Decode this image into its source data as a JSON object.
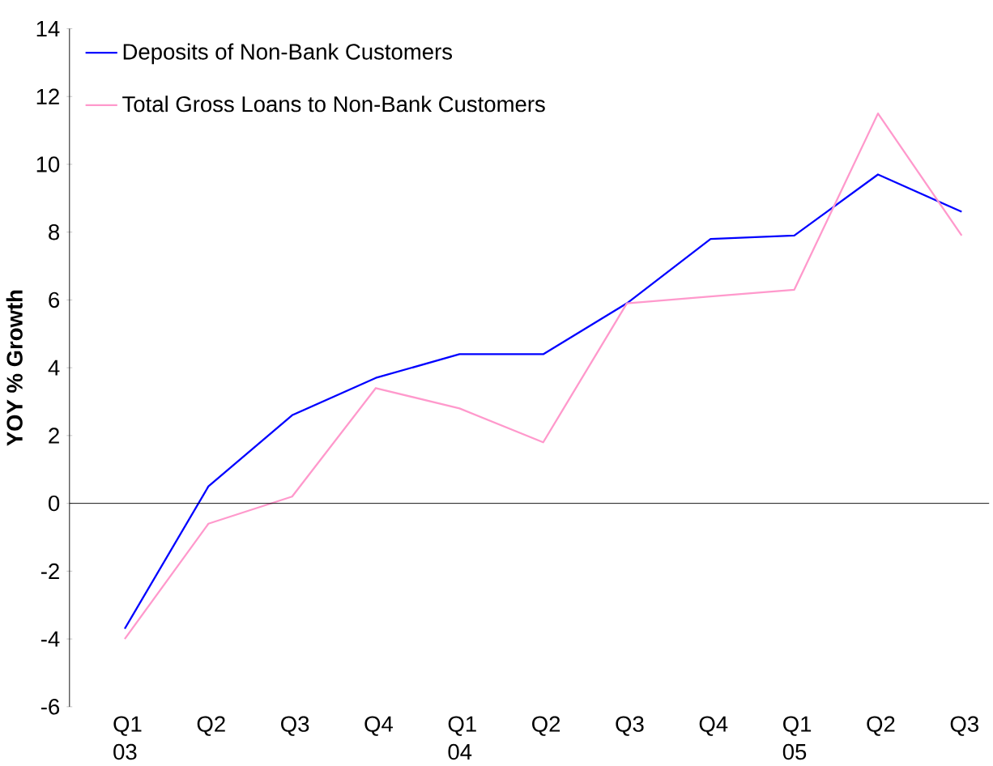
{
  "chart_data": {
    "type": "line",
    "ylabel": "YOY % Growth",
    "categories": [
      "Q1 03",
      "Q2",
      "Q3",
      "Q4",
      "Q1 04",
      "Q2",
      "Q3",
      "Q4",
      "Q1 05",
      "Q2",
      "Q3"
    ],
    "series": [
      {
        "name": "Deposits of Non-Bank Customers",
        "color": "#0000ff",
        "values": [
          -3.7,
          0.5,
          2.6,
          3.7,
          4.4,
          4.4,
          5.9,
          7.8,
          7.9,
          9.7,
          8.6
        ]
      },
      {
        "name": "Total Gross Loans to Non-Bank Customers",
        "color": "#ff99cc",
        "values": [
          -4.0,
          -0.6,
          0.2,
          3.4,
          2.8,
          1.8,
          5.9,
          6.1,
          6.3,
          11.5,
          7.9
        ]
      }
    ],
    "ylim": [
      -6,
      14
    ],
    "yticks": [
      -6,
      -4,
      -2,
      0,
      2,
      4,
      6,
      8,
      10,
      12,
      14
    ],
    "legend": "top left",
    "marker": "none",
    "line_style": "solid"
  }
}
